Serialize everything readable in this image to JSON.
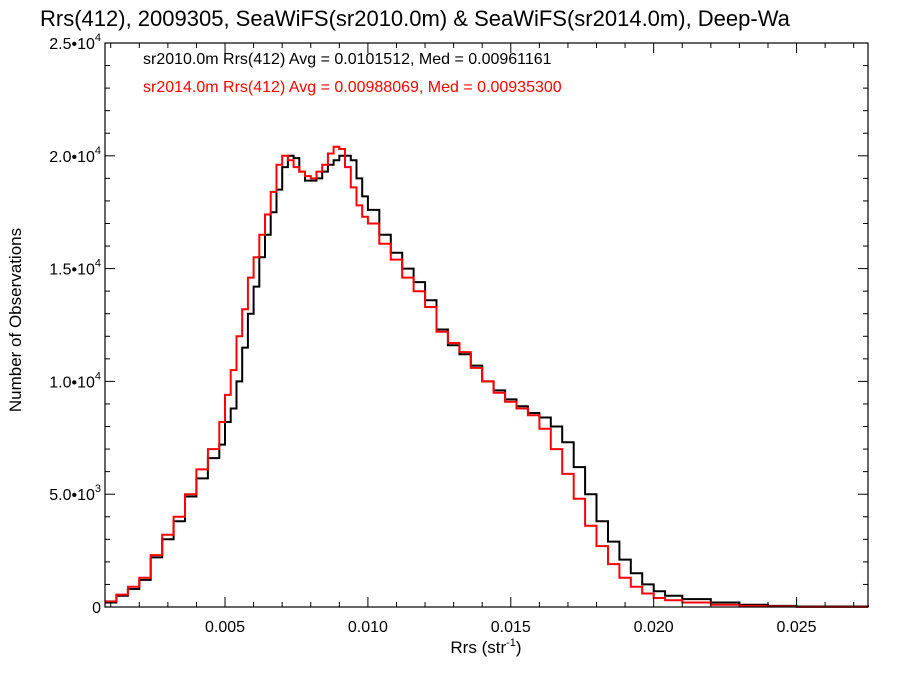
{
  "chart_data": {
    "type": "line",
    "title": "Rrs(412), 2009305, SeaWiFS(sr2010.0m) & SeaWiFS(sr2014.0m), Deep-Wa",
    "xlabel": {
      "base": "Rrs (str",
      "sup": "-1",
      "close": ")"
    },
    "ylabel": "Number of Observations",
    "xlim": [
      0.0008,
      0.0275
    ],
    "ylim": [
      0,
      25000
    ],
    "x_ticks": [
      {
        "value": 0.005,
        "label": "0.005"
      },
      {
        "value": 0.01,
        "label": "0.010"
      },
      {
        "value": 0.015,
        "label": "0.015"
      },
      {
        "value": 0.02,
        "label": "0.020"
      },
      {
        "value": 0.025,
        "label": "0.025"
      }
    ],
    "y_ticks": [
      {
        "value": 0,
        "mant": "0",
        "exp": ""
      },
      {
        "value": 5000,
        "mant": "5.0•10",
        "exp": "3"
      },
      {
        "value": 10000,
        "mant": "1.0•10",
        "exp": "4"
      },
      {
        "value": 15000,
        "mant": "1.5•10",
        "exp": "4"
      },
      {
        "value": 20000,
        "mant": "2.0•10",
        "exp": "4"
      },
      {
        "value": 25000,
        "mant": "2.5•10",
        "exp": "4"
      }
    ],
    "grid": false,
    "legend_position": "top-left",
    "series": [
      {
        "name": "sr2010.0m Rrs(412) Avg = 0.0101512, Med = 0.00961161",
        "color": "#000000",
        "points": [
          [
            0.0008,
            200
          ],
          [
            0.0012,
            500
          ],
          [
            0.0016,
            800
          ],
          [
            0.002,
            1200
          ],
          [
            0.0024,
            2200
          ],
          [
            0.0028,
            3000
          ],
          [
            0.0032,
            3800
          ],
          [
            0.0036,
            4900
          ],
          [
            0.004,
            5700
          ],
          [
            0.0044,
            6600
          ],
          [
            0.0048,
            7200
          ],
          [
            0.005,
            8200
          ],
          [
            0.0052,
            8800
          ],
          [
            0.0054,
            10000
          ],
          [
            0.0056,
            11500
          ],
          [
            0.0058,
            13000
          ],
          [
            0.006,
            14200
          ],
          [
            0.0062,
            15500
          ],
          [
            0.0064,
            16500
          ],
          [
            0.0066,
            17500
          ],
          [
            0.0068,
            18500
          ],
          [
            0.007,
            19500
          ],
          [
            0.0072,
            20000
          ],
          [
            0.0074,
            19900
          ],
          [
            0.0076,
            19300
          ],
          [
            0.0078,
            18900
          ],
          [
            0.008,
            18900
          ],
          [
            0.0082,
            19000
          ],
          [
            0.0084,
            19300
          ],
          [
            0.0086,
            19600
          ],
          [
            0.0088,
            19800
          ],
          [
            0.009,
            20000
          ],
          [
            0.0092,
            20000
          ],
          [
            0.0094,
            19800
          ],
          [
            0.0096,
            19000
          ],
          [
            0.0098,
            18200
          ],
          [
            0.01,
            17600
          ],
          [
            0.0104,
            16500
          ],
          [
            0.0108,
            15700
          ],
          [
            0.0112,
            15000
          ],
          [
            0.0116,
            14400
          ],
          [
            0.012,
            13600
          ],
          [
            0.0124,
            12300
          ],
          [
            0.0128,
            11600
          ],
          [
            0.0132,
            11200
          ],
          [
            0.0136,
            10700
          ],
          [
            0.014,
            10000
          ],
          [
            0.0144,
            9600
          ],
          [
            0.0148,
            9200
          ],
          [
            0.0152,
            8900
          ],
          [
            0.0156,
            8600
          ],
          [
            0.016,
            8400
          ],
          [
            0.0164,
            8000
          ],
          [
            0.0168,
            7300
          ],
          [
            0.0172,
            6200
          ],
          [
            0.0176,
            5000
          ],
          [
            0.018,
            3800
          ],
          [
            0.0184,
            2900
          ],
          [
            0.0188,
            2100
          ],
          [
            0.0192,
            1500
          ],
          [
            0.0196,
            1000
          ],
          [
            0.02,
            700
          ],
          [
            0.0204,
            500
          ],
          [
            0.021,
            350
          ],
          [
            0.022,
            200
          ],
          [
            0.023,
            100
          ],
          [
            0.024,
            50
          ],
          [
            0.025,
            20
          ],
          [
            0.0275,
            0
          ]
        ]
      },
      {
        "name": "sr2014.0m Rrs(412) Avg = 0.00988069, Med = 0.00935300",
        "color": "#ff0000",
        "points": [
          [
            0.0008,
            250
          ],
          [
            0.0012,
            550
          ],
          [
            0.0016,
            900
          ],
          [
            0.002,
            1300
          ],
          [
            0.0024,
            2300
          ],
          [
            0.0028,
            3200
          ],
          [
            0.0032,
            4000
          ],
          [
            0.0036,
            5000
          ],
          [
            0.004,
            6100
          ],
          [
            0.0044,
            7000
          ],
          [
            0.0048,
            8200
          ],
          [
            0.005,
            9400
          ],
          [
            0.0052,
            10500
          ],
          [
            0.0054,
            12000
          ],
          [
            0.0056,
            13200
          ],
          [
            0.0058,
            14600
          ],
          [
            0.006,
            15500
          ],
          [
            0.0062,
            16500
          ],
          [
            0.0064,
            17400
          ],
          [
            0.0066,
            18400
          ],
          [
            0.0068,
            19600
          ],
          [
            0.007,
            20000
          ],
          [
            0.0072,
            19800
          ],
          [
            0.0074,
            19500
          ],
          [
            0.0076,
            19300
          ],
          [
            0.0078,
            19100
          ],
          [
            0.008,
            19000
          ],
          [
            0.0082,
            19300
          ],
          [
            0.0084,
            19600
          ],
          [
            0.0086,
            20100
          ],
          [
            0.0088,
            20400
          ],
          [
            0.009,
            20300
          ],
          [
            0.0092,
            19500
          ],
          [
            0.0094,
            18600
          ],
          [
            0.0096,
            17800
          ],
          [
            0.0098,
            17300
          ],
          [
            0.01,
            17000
          ],
          [
            0.0104,
            16100
          ],
          [
            0.0108,
            15400
          ],
          [
            0.0112,
            14600
          ],
          [
            0.0116,
            14000
          ],
          [
            0.012,
            13300
          ],
          [
            0.0124,
            12200
          ],
          [
            0.0128,
            11700
          ],
          [
            0.0132,
            11300
          ],
          [
            0.0136,
            10600
          ],
          [
            0.014,
            10000
          ],
          [
            0.0144,
            9500
          ],
          [
            0.0148,
            9100
          ],
          [
            0.0152,
            8800
          ],
          [
            0.0156,
            8500
          ],
          [
            0.016,
            7900
          ],
          [
            0.0164,
            7000
          ],
          [
            0.0168,
            5900
          ],
          [
            0.0172,
            4800
          ],
          [
            0.0176,
            3600
          ],
          [
            0.018,
            2700
          ],
          [
            0.0184,
            1900
          ],
          [
            0.0188,
            1300
          ],
          [
            0.0192,
            900
          ],
          [
            0.0196,
            600
          ],
          [
            0.02,
            400
          ],
          [
            0.0204,
            300
          ],
          [
            0.021,
            200
          ],
          [
            0.022,
            100
          ],
          [
            0.023,
            50
          ],
          [
            0.024,
            20
          ],
          [
            0.025,
            5
          ],
          [
            0.0275,
            0
          ]
        ]
      }
    ]
  }
}
